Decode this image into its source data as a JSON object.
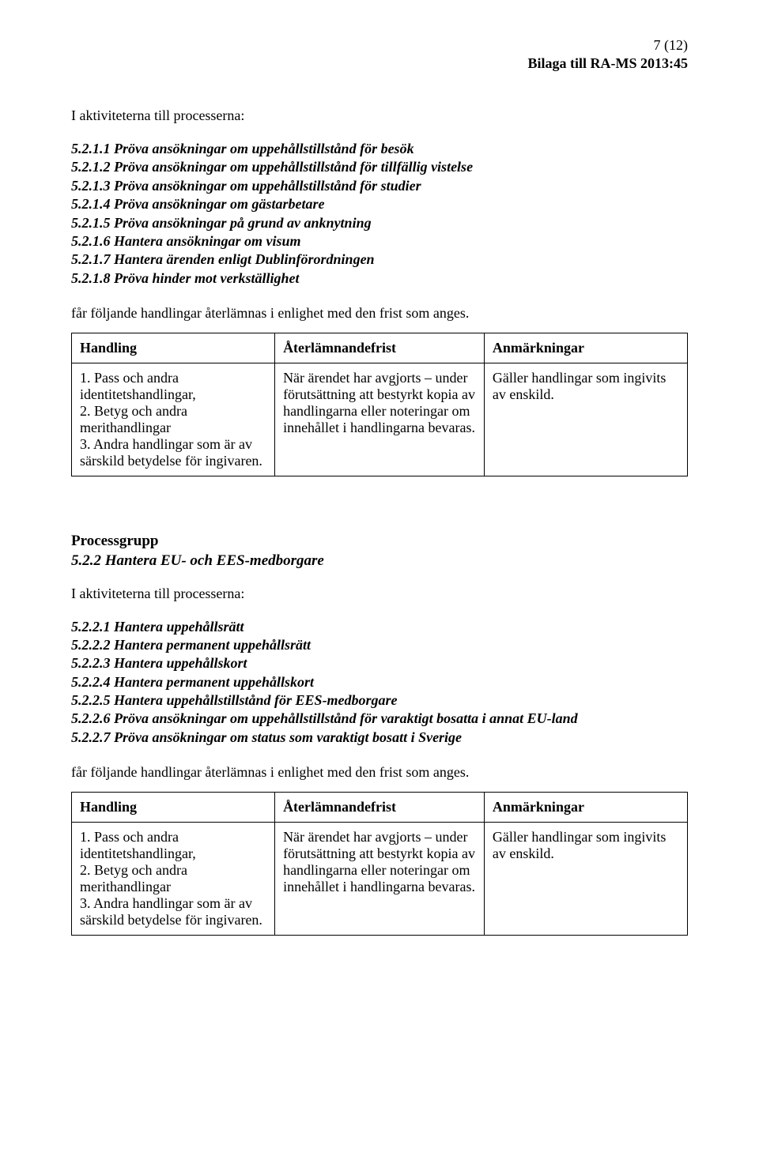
{
  "header": {
    "page_indicator": "7 (12)",
    "attachment_label": "Bilaga till RA-MS 2013:45"
  },
  "section1": {
    "intro": "I aktiviteterna till processerna:",
    "processes": [
      "5.2.1.1 Pröva ansökningar om uppehållstillstånd för besök",
      "5.2.1.2 Pröva ansökningar om uppehållstillstånd för tillfällig vistelse",
      "5.2.1.3 Pröva ansökningar om uppehållstillstånd för studier",
      "5.2.1.4 Pröva ansökningar om gästarbetare",
      "5.2.1.5 Pröva ansökningar på grund av anknytning",
      "5.2.1.6 Hantera ansökningar om visum",
      "5.2.1.7 Hantera ärenden enligt Dublinförordningen",
      "5.2.1.8 Pröva hinder mot verkställighet"
    ],
    "followtext": "får följande handlingar återlämnas i enlighet med den frist som anges."
  },
  "table1": {
    "headers": [
      "Handling",
      "Återlämnandefrist",
      "Anmärkningar"
    ],
    "row": {
      "col1_items": [
        "1. Pass och andra identitetshandlingar,",
        "2. Betyg och andra merithandlingar",
        "3. Andra handlingar som är av särskild betydelse för ingivaren."
      ],
      "col2": "När ärendet har avgjorts – under förutsättning att bestyrkt kopia av handlingarna eller noteringar om innehållet i handlingarna bevaras.",
      "col3": "Gäller handlingar som ingivits av enskild."
    }
  },
  "pg": {
    "label": "Processgrupp",
    "title": "5.2.2 Hantera EU- och EES-medborgare"
  },
  "section2": {
    "intro": "I aktiviteterna till processerna:",
    "processes": [
      "5.2.2.1 Hantera uppehållsrätt",
      "5.2.2.2 Hantera permanent uppehållsrätt",
      "5.2.2.3 Hantera uppehållskort",
      "5.2.2.4 Hantera permanent uppehållskort",
      "5.2.2.5 Hantera uppehållstillstånd för EES-medborgare",
      "5.2.2.6 Pröva ansökningar om uppehållstillstånd för varaktigt bosatta i annat EU-land",
      "5.2.2.7 Pröva ansökningar om status som varaktigt bosatt i Sverige"
    ],
    "followtext": "får följande handlingar återlämnas i enlighet med den frist som anges."
  },
  "table2": {
    "headers": [
      "Handling",
      "Återlämnandefrist",
      "Anmärkningar"
    ],
    "row": {
      "col1_items": [
        "1. Pass och andra identitetshandlingar,",
        "2. Betyg och andra merithandlingar",
        "3. Andra handlingar som är av särskild betydelse för ingivaren."
      ],
      "col2": "När ärendet har avgjorts – under förutsättning att bestyrkt kopia av handlingarna eller noteringar om innehållet i handlingarna bevaras.",
      "col3": "Gäller handlingar som ingivits av enskild."
    }
  }
}
